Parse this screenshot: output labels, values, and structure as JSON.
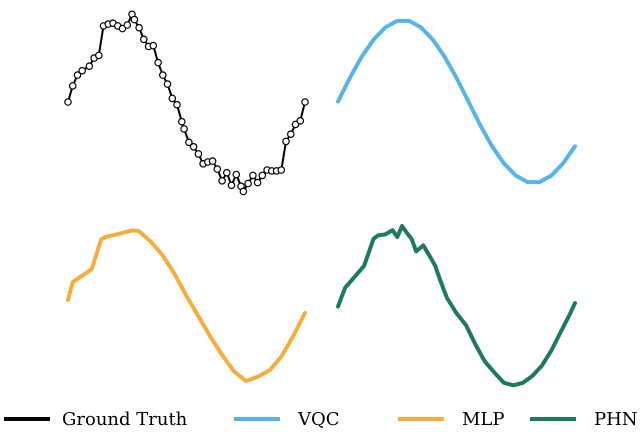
{
  "chart_data": [
    {
      "type": "scatter",
      "title": "",
      "xlabel": "",
      "ylabel": "",
      "xlim": [
        0,
        1
      ],
      "ylim": [
        -1.05,
        1.05
      ],
      "grid": false,
      "series": [
        {
          "name": "Ground Truth",
          "color": "#000000",
          "marker": "open-circle",
          "x": [
            0.0,
            0.02,
            0.04,
            0.06,
            0.09,
            0.11,
            0.13,
            0.15,
            0.17,
            0.19,
            0.21,
            0.23,
            0.25,
            0.27,
            0.28,
            0.3,
            0.32,
            0.34,
            0.36,
            0.38,
            0.4,
            0.42,
            0.44,
            0.46,
            0.48,
            0.49,
            0.51,
            0.53,
            0.55,
            0.57,
            0.59,
            0.61,
            0.63,
            0.65,
            0.67,
            0.69,
            0.71,
            0.73,
            0.74,
            0.76,
            0.78,
            0.8,
            0.82,
            0.84,
            0.86,
            0.88,
            0.9,
            0.92,
            0.94,
            0.96,
            0.98,
            1.0
          ],
          "y": [
            0.0,
            0.18,
            0.3,
            0.35,
            0.4,
            0.49,
            0.52,
            0.85,
            0.87,
            0.88,
            0.85,
            0.82,
            0.86,
            0.98,
            0.92,
            0.83,
            0.7,
            0.62,
            0.63,
            0.44,
            0.3,
            0.2,
            0.04,
            -0.03,
            -0.22,
            -0.3,
            -0.45,
            -0.5,
            -0.58,
            -0.69,
            -0.67,
            -0.66,
            -0.75,
            -0.88,
            -0.79,
            -0.93,
            -0.81,
            -0.94,
            -1.0,
            -0.91,
            -0.82,
            -0.9,
            -0.82,
            -0.76,
            -0.77,
            -0.77,
            -0.76,
            -0.44,
            -0.36,
            -0.25,
            -0.21,
            0.0
          ]
        }
      ]
    },
    {
      "type": "line",
      "title": "",
      "xlabel": "",
      "ylabel": "",
      "xlim": [
        0,
        1
      ],
      "ylim": [
        -1.05,
        1.05
      ],
      "grid": false,
      "series": [
        {
          "name": "VQC",
          "color": "#56b4e9",
          "x": [
            0.0,
            0.05,
            0.1,
            0.15,
            0.2,
            0.25,
            0.3,
            0.35,
            0.4,
            0.45,
            0.5,
            0.55,
            0.6,
            0.65,
            0.7,
            0.75,
            0.8,
            0.85,
            0.9,
            0.95,
            1.0
          ],
          "y": [
            0.0,
            0.29,
            0.55,
            0.76,
            0.91,
            0.99,
            0.99,
            0.91,
            0.76,
            0.55,
            0.29,
            0.0,
            -0.29,
            -0.55,
            -0.76,
            -0.91,
            -0.99,
            -0.99,
            -0.91,
            -0.76,
            -0.55
          ]
        }
      ]
    },
    {
      "type": "line",
      "title": "",
      "xlabel": "",
      "ylabel": "",
      "xlim": [
        0,
        1
      ],
      "ylim": [
        -1.05,
        1.05
      ],
      "grid": false,
      "series": [
        {
          "name": "MLP",
          "color": "#f5ae3d",
          "x": [
            0.0,
            0.02,
            0.1,
            0.14,
            0.16,
            0.22,
            0.27,
            0.3,
            0.35,
            0.4,
            0.45,
            0.5,
            0.55,
            0.6,
            0.65,
            0.7,
            0.75,
            0.8,
            0.85,
            0.9,
            0.95,
            1.0
          ],
          "y": [
            0.0,
            0.22,
            0.38,
            0.75,
            0.78,
            0.82,
            0.86,
            0.85,
            0.72,
            0.55,
            0.32,
            0.05,
            -0.2,
            -0.45,
            -0.68,
            -0.88,
            -1.0,
            -0.95,
            -0.87,
            -0.7,
            -0.45,
            -0.16
          ]
        }
      ]
    },
    {
      "type": "line",
      "title": "",
      "xlabel": "",
      "ylabel": "",
      "xlim": [
        0,
        1
      ],
      "ylim": [
        -1.05,
        1.05
      ],
      "grid": false,
      "series": [
        {
          "name": "PHN",
          "color": "#1f7a5a",
          "x": [
            0.0,
            0.03,
            0.07,
            0.11,
            0.15,
            0.17,
            0.2,
            0.23,
            0.25,
            0.27,
            0.29,
            0.31,
            0.33,
            0.36,
            0.39,
            0.41,
            0.43,
            0.46,
            0.5,
            0.54,
            0.58,
            0.62,
            0.66,
            0.7,
            0.74,
            0.78,
            0.82,
            0.86,
            0.9,
            0.94,
            0.98,
            1.0
          ],
          "y": [
            -0.1,
            0.12,
            0.25,
            0.38,
            0.7,
            0.74,
            0.75,
            0.8,
            0.72,
            0.85,
            0.77,
            0.7,
            0.55,
            0.62,
            0.48,
            0.38,
            0.22,
            0.0,
            -0.18,
            -0.32,
            -0.55,
            -0.75,
            -0.88,
            -1.0,
            -1.03,
            -1.0,
            -0.92,
            -0.8,
            -0.62,
            -0.4,
            -0.18,
            -0.06
          ]
        }
      ]
    }
  ],
  "legend": {
    "placement": "bottom",
    "items": [
      {
        "label": "Ground Truth",
        "color": "#000000"
      },
      {
        "label": "VQC",
        "color": "#56b4e9"
      },
      {
        "label": "MLP",
        "color": "#f5ae3d"
      },
      {
        "label": "PHN",
        "color": "#1f7a5a"
      }
    ]
  }
}
